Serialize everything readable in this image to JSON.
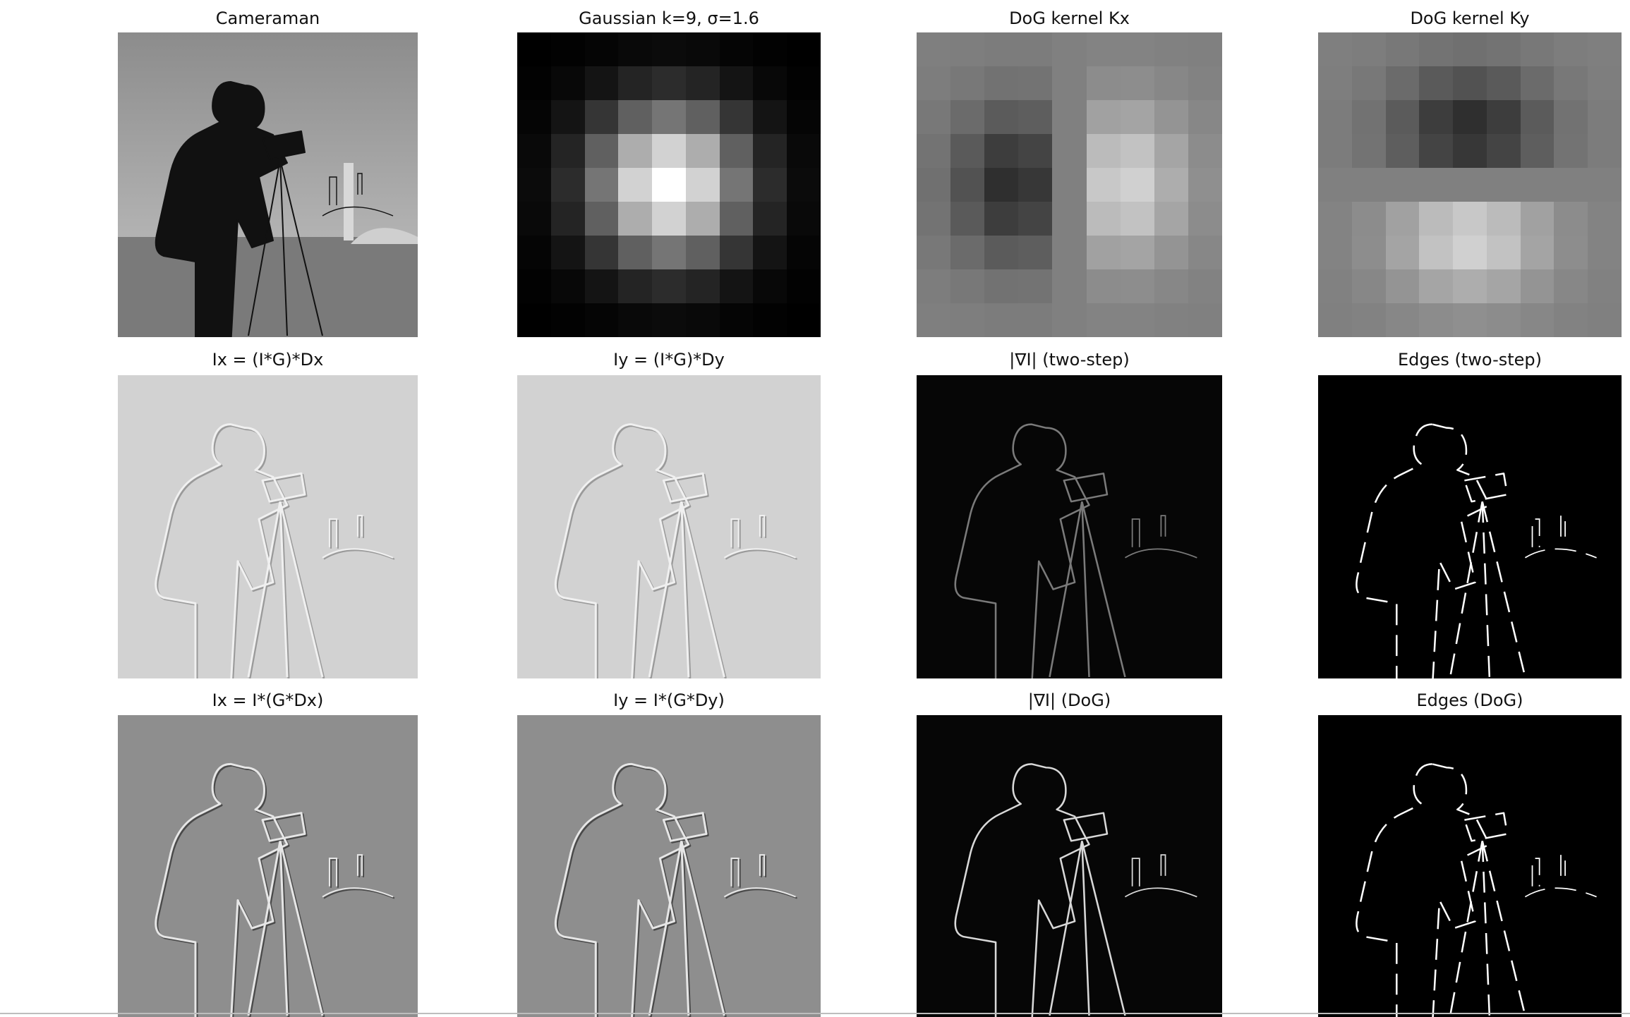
{
  "figure": {
    "rows": [
      {
        "panels": [
          {
            "title": "Cameraman",
            "kind": "photo",
            "name": "panel-cameraman"
          },
          {
            "title": "Gaussian k=9, σ=1.6",
            "kind": "kernel-gauss",
            "name": "panel-gaussian-kernel"
          },
          {
            "title": "DoG kernel Kx",
            "kind": "kernel-dogx",
            "name": "panel-dog-kernel-kx"
          },
          {
            "title": "DoG kernel Ky",
            "kind": "kernel-dogy",
            "name": "panel-dog-kernel-ky"
          }
        ]
      },
      {
        "panels": [
          {
            "title": "Ix = (I*G)*Dx",
            "kind": "emboss-light",
            "name": "panel-ix-two-step"
          },
          {
            "title": "Iy = (I*G)*Dy",
            "kind": "emboss-light",
            "name": "panel-iy-two-step"
          },
          {
            "title": "|∇I| (two-step)",
            "kind": "magnitude",
            "name": "panel-grad-mag-two-step"
          },
          {
            "title": "Edges (two-step)",
            "kind": "edges",
            "name": "panel-edges-two-step"
          }
        ]
      },
      {
        "panels": [
          {
            "title": "Ix = I*(G*Dx)",
            "kind": "emboss-dark",
            "name": "panel-ix-dog"
          },
          {
            "title": "Iy = I*(G*Dy)",
            "kind": "emboss-dark",
            "name": "panel-iy-dog"
          },
          {
            "title": "|∇I| (DoG)",
            "kind": "magnitude-strong",
            "name": "panel-grad-mag-dog"
          },
          {
            "title": "Edges (DoG)",
            "kind": "edges",
            "name": "panel-edges-dog"
          }
        ]
      }
    ],
    "colors": {
      "background": "#ffffff",
      "title": "#111111"
    }
  }
}
